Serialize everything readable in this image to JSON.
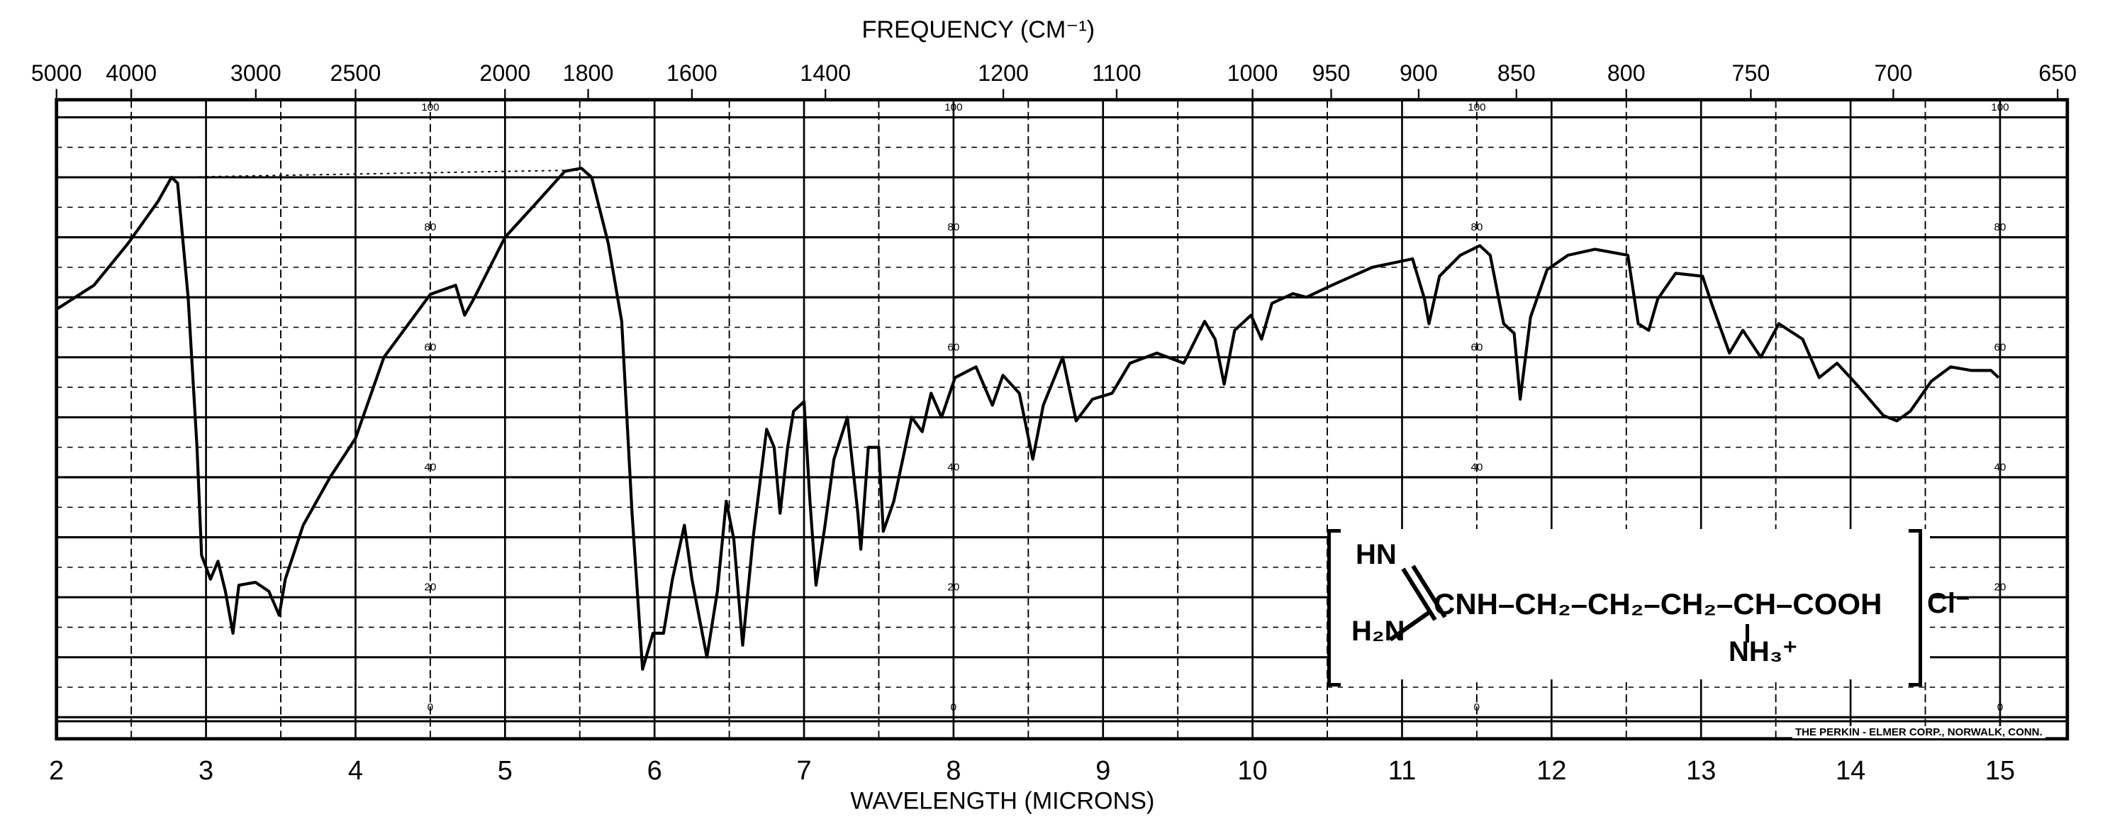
{
  "chart_data": {
    "type": "line",
    "title": "",
    "xlabel": "WAVELENGTH (MICRONS)",
    "x2label": "FREQUENCY (CM⁻¹)",
    "ylabel": "",
    "xlim": [
      2,
      15.45
    ],
    "ylim": [
      0,
      100
    ],
    "grid": true,
    "wavelength_ticks": [
      "2",
      "3",
      "4",
      "5",
      "6",
      "7",
      "8",
      "9",
      "10",
      "11",
      "12",
      "13",
      "14",
      "15"
    ],
    "frequency_ticks": [
      {
        "label": "5000",
        "um": 2.0
      },
      {
        "label": "4000",
        "um": 2.5
      },
      {
        "label": "3000",
        "um": 3.333
      },
      {
        "label": "2500",
        "um": 4.0
      },
      {
        "label": "2000",
        "um": 5.0
      },
      {
        "label": "1800",
        "um": 5.556
      },
      {
        "label": "1600",
        "um": 6.25
      },
      {
        "label": "1400",
        "um": 7.143
      },
      {
        "label": "1200",
        "um": 8.333
      },
      {
        "label": "1100",
        "um": 9.091
      },
      {
        "label": "1000",
        "um": 10.0
      },
      {
        "label": "950",
        "um": 10.526
      },
      {
        "label": "900",
        "um": 11.111
      },
      {
        "label": "850",
        "um": 11.765
      },
      {
        "label": "800",
        "um": 12.5
      },
      {
        "label": "750",
        "um": 13.333
      },
      {
        "label": "700",
        "um": 14.286
      },
      {
        "label": "650",
        "um": 15.385
      }
    ],
    "percent_labels": [
      "100",
      "80",
      "60",
      "40",
      "20",
      "0"
    ],
    "percent_label_columns_um": [
      4.5,
      8.0,
      11.5,
      15.0
    ],
    "series": [
      {
        "name": "transmittance",
        "color": "#000000",
        "x": [
          2.0,
          2.25,
          2.48,
          2.68,
          2.77,
          2.81,
          2.88,
          2.94,
          2.97,
          3.03,
          3.08,
          3.13,
          3.18,
          3.22,
          3.33,
          3.42,
          3.49,
          3.53,
          3.65,
          3.83,
          4.0,
          4.19,
          4.5,
          4.67,
          4.73,
          4.79,
          5.0,
          5.22,
          5.4,
          5.51,
          5.58,
          5.69,
          5.78,
          5.85,
          5.92,
          5.99,
          6.06,
          6.12,
          6.2,
          6.25,
          6.35,
          6.42,
          6.48,
          6.53,
          6.59,
          6.66,
          6.75,
          6.8,
          6.84,
          6.89,
          6.93,
          7.0,
          7.04,
          7.08,
          7.14,
          7.2,
          7.29,
          7.36,
          7.38,
          7.43,
          7.5,
          7.53,
          7.6,
          7.72,
          7.79,
          7.85,
          7.92,
          8.01,
          8.15,
          8.26,
          8.33,
          8.44,
          8.53,
          8.6,
          8.73,
          8.82,
          8.93,
          9.06,
          9.18,
          9.36,
          9.54,
          9.68,
          9.75,
          9.81,
          9.88,
          9.99,
          10.06,
          10.13,
          10.27,
          10.36,
          10.53,
          10.8,
          11.07,
          11.15,
          11.18,
          11.25,
          11.39,
          11.52,
          11.59,
          11.68,
          11.75,
          11.79,
          11.86,
          11.97,
          12.11,
          12.29,
          12.51,
          12.58,
          12.65,
          12.71,
          12.83,
          13.01,
          13.07,
          13.19,
          13.28,
          13.4,
          13.52,
          13.68,
          13.79,
          13.91,
          14.04,
          14.22,
          14.31,
          14.4,
          14.54,
          14.67,
          14.81,
          14.94,
          14.99
        ],
        "y": [
          68,
          72,
          79,
          86,
          90,
          89,
          70,
          45,
          27,
          23,
          26,
          21,
          14,
          22,
          22.5,
          21,
          17,
          23,
          32,
          40,
          46.5,
          60,
          70.5,
          72,
          67,
          69.7,
          80,
          86,
          91,
          91.5,
          90,
          79,
          66,
          34,
          8,
          14,
          14,
          23,
          32,
          23,
          10,
          21,
          36,
          29.7,
          12,
          30,
          48,
          45,
          34,
          45,
          51,
          52.6,
          36,
          22,
          32,
          43,
          50,
          34,
          28,
          45,
          45,
          31,
          36,
          50,
          47.6,
          54,
          50,
          56.6,
          58.4,
          52,
          57,
          54,
          43,
          52,
          60,
          49.4,
          53,
          54,
          59,
          60.7,
          59,
          66,
          63,
          55.5,
          64.5,
          67,
          63,
          69,
          70.6,
          70,
          72,
          75,
          76.4,
          69.7,
          65.6,
          73.5,
          77,
          78.6,
          77,
          65.6,
          64,
          53,
          66.7,
          74.6,
          77,
          78,
          77,
          65.6,
          64.5,
          69.7,
          74,
          73.5,
          69,
          60.7,
          64.5,
          60,
          65.6,
          63,
          56.6,
          59,
          55.5,
          50.3,
          49.4,
          51,
          56,
          58.4,
          57.8,
          57.8,
          56.6
        ]
      }
    ]
  },
  "structure": {
    "hn": "HN",
    "h2n": "H₂N",
    "chain": "CNH–CH₂–CH₂–CH₂–CH–COOH",
    "nh3": "NH₃⁺",
    "counterion": "Cl⁻"
  },
  "credit": "THE PERKIN - ELMER CORP., NORWALK, CONN."
}
